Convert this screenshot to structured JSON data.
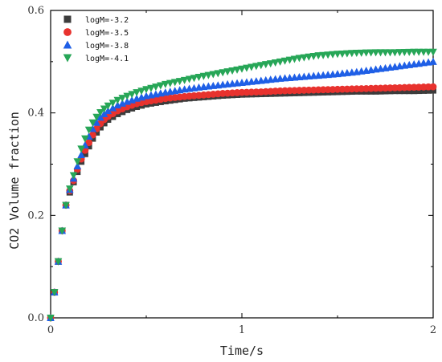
{
  "chart_data": {
    "type": "scatter",
    "xlabel": "Time/s",
    "ylabel": "CO2 Volume fraction",
    "xlim": [
      0,
      2
    ],
    "ylim": [
      0,
      0.6
    ],
    "x_ticks": [
      "0",
      "1",
      "2"
    ],
    "y_ticks": [
      "0.0",
      "0.2",
      "0.4",
      "0.6"
    ],
    "grid": false,
    "legend_position": "top-left",
    "series": [
      {
        "name": "logM=-3.2",
        "marker": "square",
        "color": "#3c3c3c",
        "points": [
          [
            0.0,
            0.0
          ],
          [
            0.02,
            0.05
          ],
          [
            0.04,
            0.11
          ],
          [
            0.06,
            0.17
          ],
          [
            0.08,
            0.22
          ],
          [
            0.1,
            0.245
          ],
          [
            0.12,
            0.265
          ],
          [
            0.14,
            0.285
          ],
          [
            0.16,
            0.305
          ],
          [
            0.18,
            0.32
          ],
          [
            0.2,
            0.335
          ],
          [
            0.22,
            0.35
          ],
          [
            0.24,
            0.362
          ],
          [
            0.26,
            0.372
          ],
          [
            0.28,
            0.38
          ],
          [
            0.3,
            0.387
          ],
          [
            0.35,
            0.398
          ],
          [
            0.4,
            0.406
          ],
          [
            0.45,
            0.412
          ],
          [
            0.5,
            0.417
          ],
          [
            0.6,
            0.423
          ],
          [
            0.7,
            0.428
          ],
          [
            0.8,
            0.431
          ],
          [
            0.9,
            0.434
          ],
          [
            1.0,
            0.436
          ],
          [
            1.1,
            0.437
          ],
          [
            1.2,
            0.438
          ],
          [
            1.3,
            0.439
          ],
          [
            1.4,
            0.44
          ],
          [
            1.5,
            0.441
          ],
          [
            1.6,
            0.442
          ],
          [
            1.7,
            0.442
          ],
          [
            1.8,
            0.443
          ],
          [
            1.9,
            0.443
          ],
          [
            2.0,
            0.444
          ]
        ]
      },
      {
        "name": "logM=-3.5",
        "marker": "circle",
        "color": "#e8322e",
        "points": [
          [
            0.0,
            0.0
          ],
          [
            0.02,
            0.05
          ],
          [
            0.04,
            0.11
          ],
          [
            0.06,
            0.17
          ],
          [
            0.08,
            0.22
          ],
          [
            0.1,
            0.248
          ],
          [
            0.12,
            0.268
          ],
          [
            0.14,
            0.29
          ],
          [
            0.16,
            0.31
          ],
          [
            0.18,
            0.327
          ],
          [
            0.2,
            0.342
          ],
          [
            0.22,
            0.357
          ],
          [
            0.24,
            0.369
          ],
          [
            0.26,
            0.379
          ],
          [
            0.28,
            0.387
          ],
          [
            0.3,
            0.393
          ],
          [
            0.35,
            0.404
          ],
          [
            0.4,
            0.412
          ],
          [
            0.45,
            0.418
          ],
          [
            0.5,
            0.422
          ],
          [
            0.6,
            0.428
          ],
          [
            0.7,
            0.432
          ],
          [
            0.8,
            0.435
          ],
          [
            0.9,
            0.438
          ],
          [
            1.0,
            0.44
          ],
          [
            1.1,
            0.441
          ],
          [
            1.2,
            0.443
          ],
          [
            1.3,
            0.444
          ],
          [
            1.4,
            0.445
          ],
          [
            1.5,
            0.446
          ],
          [
            1.6,
            0.447
          ],
          [
            1.7,
            0.448
          ],
          [
            1.8,
            0.449
          ],
          [
            1.9,
            0.45
          ],
          [
            2.0,
            0.451
          ]
        ]
      },
      {
        "name": "logM=-3.8",
        "marker": "triangle-up",
        "color": "#1f5fe6",
        "points": [
          [
            0.0,
            0.0
          ],
          [
            0.02,
            0.05
          ],
          [
            0.04,
            0.11
          ],
          [
            0.06,
            0.17
          ],
          [
            0.08,
            0.22
          ],
          [
            0.1,
            0.25
          ],
          [
            0.12,
            0.272
          ],
          [
            0.14,
            0.296
          ],
          [
            0.16,
            0.318
          ],
          [
            0.18,
            0.337
          ],
          [
            0.2,
            0.354
          ],
          [
            0.22,
            0.369
          ],
          [
            0.24,
            0.381
          ],
          [
            0.26,
            0.391
          ],
          [
            0.28,
            0.398
          ],
          [
            0.3,
            0.404
          ],
          [
            0.35,
            0.415
          ],
          [
            0.4,
            0.422
          ],
          [
            0.45,
            0.428
          ],
          [
            0.5,
            0.433
          ],
          [
            0.6,
            0.44
          ],
          [
            0.7,
            0.446
          ],
          [
            0.8,
            0.451
          ],
          [
            0.9,
            0.455
          ],
          [
            1.0,
            0.459
          ],
          [
            1.1,
            0.463
          ],
          [
            1.2,
            0.467
          ],
          [
            1.3,
            0.47
          ],
          [
            1.4,
            0.473
          ],
          [
            1.5,
            0.476
          ],
          [
            1.6,
            0.48
          ],
          [
            1.7,
            0.485
          ],
          [
            1.8,
            0.49
          ],
          [
            1.9,
            0.495
          ],
          [
            2.0,
            0.5
          ]
        ]
      },
      {
        "name": "logM=-4.1",
        "marker": "triangle-down",
        "color": "#27a657",
        "points": [
          [
            0.0,
            0.0
          ],
          [
            0.02,
            0.05
          ],
          [
            0.04,
            0.11
          ],
          [
            0.06,
            0.17
          ],
          [
            0.08,
            0.22
          ],
          [
            0.1,
            0.252
          ],
          [
            0.12,
            0.278
          ],
          [
            0.14,
            0.305
          ],
          [
            0.16,
            0.33
          ],
          [
            0.18,
            0.35
          ],
          [
            0.2,
            0.367
          ],
          [
            0.22,
            0.381
          ],
          [
            0.24,
            0.392
          ],
          [
            0.26,
            0.401
          ],
          [
            0.28,
            0.408
          ],
          [
            0.3,
            0.414
          ],
          [
            0.35,
            0.425
          ],
          [
            0.4,
            0.433
          ],
          [
            0.45,
            0.44
          ],
          [
            0.5,
            0.446
          ],
          [
            0.6,
            0.456
          ],
          [
            0.7,
            0.464
          ],
          [
            0.8,
            0.472
          ],
          [
            0.9,
            0.479
          ],
          [
            1.0,
            0.486
          ],
          [
            1.1,
            0.493
          ],
          [
            1.2,
            0.5
          ],
          [
            1.3,
            0.507
          ],
          [
            1.4,
            0.512
          ],
          [
            1.5,
            0.515
          ],
          [
            1.6,
            0.517
          ],
          [
            1.7,
            0.518
          ],
          [
            1.8,
            0.518
          ],
          [
            1.9,
            0.519
          ],
          [
            2.0,
            0.519
          ]
        ]
      }
    ]
  }
}
